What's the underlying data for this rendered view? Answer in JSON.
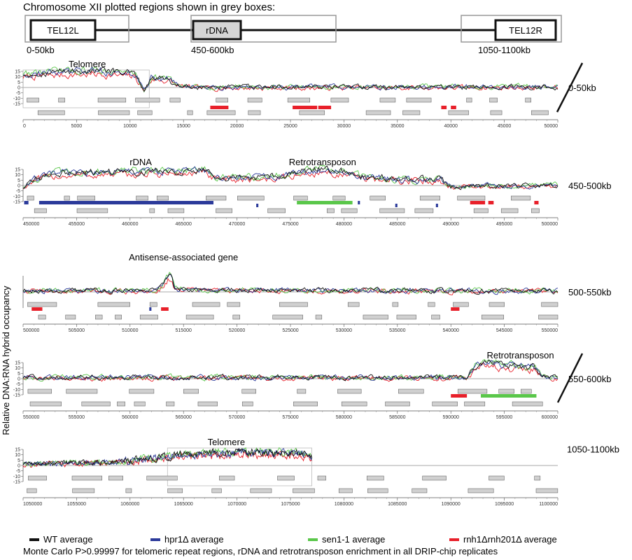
{
  "header": {
    "title": "Chromosome XII plotted regions shown in grey boxes:",
    "boxes": [
      {
        "label": "TEL12L",
        "range": "0-50kb"
      },
      {
        "label": "rDNA",
        "range": "450-600kb"
      },
      {
        "label": "TEL12R",
        "range": "1050-1100kb"
      }
    ]
  },
  "y_axis_title": "Relative DNA:RNA hybrid occupancy",
  "colors": {
    "wt": "#111111",
    "hpr1": "#2b3a9a",
    "sen1": "#5ac74a",
    "rnh": "#e8202a",
    "gene": "#d0d0d0",
    "gene_edge": "#555555",
    "guide": "#aaaaaa"
  },
  "legend": [
    {
      "key": "wt",
      "label": "WT average",
      "italic": false
    },
    {
      "key": "hpr1",
      "label": "hpr1Δ average",
      "italic": true
    },
    {
      "key": "sen1",
      "label": "sen1-1 average",
      "italic": true
    },
    {
      "key": "rnh",
      "label": "rnh1Δrnh201Δ average",
      "italic": true
    }
  ],
  "footnote": "Monte Carlo P>0.99997 for telomeric repeat regions, rDNA and retrotransposon enrichment in all DRIP-chip replicates",
  "chart_data": [
    {
      "type": "line",
      "range_label": "0-50kb",
      "xlim": [
        0,
        50000
      ],
      "ylim": [
        -15,
        15
      ],
      "yticks": [
        15,
        10,
        5,
        0,
        -5,
        -10,
        -15
      ],
      "xticks": [
        "0",
        "5000",
        "10000",
        "15000",
        "20000",
        "25000",
        "30000",
        "35000",
        "40000",
        "45000",
        "50000"
      ],
      "annotations": [
        {
          "text": "Telomere",
          "x": 6000
        }
      ],
      "profile": [
        [
          0,
          12
        ],
        [
          3000,
          14
        ],
        [
          7000,
          15
        ],
        [
          10500,
          12
        ],
        [
          11300,
          -3
        ],
        [
          12000,
          9
        ],
        [
          13500,
          8
        ],
        [
          14500,
          2
        ],
        [
          16000,
          0
        ],
        [
          50000,
          0.5
        ]
      ],
      "enriched": [
        {
          "start": 0,
          "end": 11800,
          "label": "telomeric repeat"
        }
      ],
      "features": [
        {
          "start": 17500,
          "end": 19200,
          "color": "rnh",
          "row": 3
        },
        {
          "start": 25200,
          "end": 27500,
          "color": "rnh",
          "row": 3
        },
        {
          "start": 27600,
          "end": 28800,
          "color": "rnh",
          "row": 3
        },
        {
          "start": 39100,
          "end": 39600,
          "color": "rnh",
          "row": 3
        },
        {
          "start": 40000,
          "end": 40500,
          "color": "rnh",
          "row": 3
        }
      ]
    },
    {
      "type": "line",
      "range_label": "450-500kb",
      "xlim": [
        450000,
        500000
      ],
      "ylim": [
        -15,
        15
      ],
      "yticks": [
        15,
        10,
        5,
        0,
        -5,
        -10,
        -15
      ],
      "xticks": [
        "450000",
        "455000",
        "460000",
        "465000",
        "470000",
        "475000",
        "480000",
        "485000",
        "490000",
        "495000",
        "500000"
      ],
      "annotations": [
        {
          "text": "rDNA",
          "x": 461000
        },
        {
          "text": "Retrotransposon",
          "x": 478000
        }
      ],
      "profile": [
        [
          450000,
          -2
        ],
        [
          451000,
          5
        ],
        [
          453000,
          11
        ],
        [
          458000,
          12
        ],
        [
          463000,
          13
        ],
        [
          467000,
          14
        ],
        [
          468000,
          6
        ],
        [
          471000,
          7
        ],
        [
          474000,
          8
        ],
        [
          476000,
          12
        ],
        [
          478000,
          15
        ],
        [
          480000,
          12
        ],
        [
          482000,
          7
        ],
        [
          486000,
          5
        ],
        [
          489000,
          6
        ],
        [
          490000,
          -1
        ],
        [
          500000,
          0
        ]
      ],
      "enriched": [],
      "features": [
        {
          "start": 450100,
          "end": 450500,
          "color": "hpr1",
          "row": 2
        },
        {
          "start": 451500,
          "end": 467800,
          "color": "hpr1",
          "row": 2
        },
        {
          "start": 471800,
          "end": 472000,
          "color": "hpr1",
          "row": 3
        },
        {
          "start": 475600,
          "end": 480800,
          "color": "sen1",
          "row": 2
        },
        {
          "start": 481300,
          "end": 481500,
          "color": "hpr1",
          "row": 2
        },
        {
          "start": 484800,
          "end": 485000,
          "color": "hpr1",
          "row": 3
        },
        {
          "start": 488600,
          "end": 488800,
          "color": "hpr1",
          "row": 3
        },
        {
          "start": 491800,
          "end": 493200,
          "color": "rnh",
          "row": 2
        },
        {
          "start": 493500,
          "end": 494000,
          "color": "rnh",
          "row": 2
        },
        {
          "start": 497800,
          "end": 498200,
          "color": "rnh",
          "row": 2
        }
      ]
    },
    {
      "type": "line",
      "range_label": "500-550kb",
      "xlim": [
        500000,
        550000
      ],
      "ylim": [
        -15,
        15
      ],
      "yticks": [],
      "xticks": [
        "500000",
        "505000",
        "510000",
        "515000",
        "520000",
        "525000",
        "530000",
        "535000",
        "540000",
        "545000",
        "550000"
      ],
      "annotations": [
        {
          "text": "Antisense-associated gene",
          "x": 515000
        }
      ],
      "profile": [
        [
          500000,
          1
        ],
        [
          512500,
          1
        ],
        [
          513800,
          16
        ],
        [
          514200,
          2
        ],
        [
          550000,
          0.5
        ]
      ],
      "enriched": [],
      "features": [
        {
          "start": 500800,
          "end": 501800,
          "color": "rnh",
          "row": 2
        },
        {
          "start": 511800,
          "end": 512000,
          "color": "hpr1",
          "row": 2
        },
        {
          "start": 512900,
          "end": 513600,
          "color": "rnh",
          "row": 2
        },
        {
          "start": 540000,
          "end": 540800,
          "color": "rnh",
          "row": 2
        }
      ]
    },
    {
      "type": "line",
      "range_label": "550-600kb",
      "xlim": [
        550000,
        600000
      ],
      "ylim": [
        -15,
        15
      ],
      "yticks": [
        15,
        10,
        5,
        0,
        -5,
        -10,
        -15
      ],
      "xticks": [
        "550000",
        "555000",
        "560000",
        "565000",
        "570000",
        "575000",
        "580000",
        "585000",
        "590000",
        "595000",
        "600000"
      ],
      "annotations": [
        {
          "text": "Retrotransposon",
          "x": 596500
        }
      ],
      "profile": [
        [
          550000,
          1
        ],
        [
          591500,
          1
        ],
        [
          592200,
          11
        ],
        [
          593000,
          14
        ],
        [
          596000,
          11
        ],
        [
          597800,
          10
        ],
        [
          598500,
          2
        ],
        [
          600000,
          0
        ]
      ],
      "enriched": [],
      "features": [
        {
          "start": 590000,
          "end": 591500,
          "color": "rnh",
          "row": 2
        },
        {
          "start": 592800,
          "end": 598000,
          "color": "sen1",
          "row": 2
        }
      ]
    },
    {
      "type": "line",
      "range_label": "1050-1100kb",
      "xlim": [
        1050000,
        1100000
      ],
      "ylim": [
        -15,
        15
      ],
      "yticks": [
        15,
        10,
        5,
        0,
        -5,
        -10,
        -15
      ],
      "xticks": [
        "1050000",
        "1055000",
        "1060000",
        "1065000",
        "1070000",
        "1075000",
        "1080000",
        "1085000",
        "1090000",
        "1095000",
        "1100000"
      ],
      "annotations": [
        {
          "text": "Telomere",
          "x": 1069000
        }
      ],
      "profile": [
        [
          1050000,
          1
        ],
        [
          1058000,
          3
        ],
        [
          1062000,
          6
        ],
        [
          1064000,
          9
        ],
        [
          1068000,
          11
        ],
        [
          1072000,
          12
        ],
        [
          1076000,
          11
        ],
        [
          1077000,
          6
        ]
      ],
      "enriched": [
        {
          "start": 1063500,
          "end": 1077000,
          "label": "telomeric repeat"
        }
      ],
      "features": []
    }
  ]
}
